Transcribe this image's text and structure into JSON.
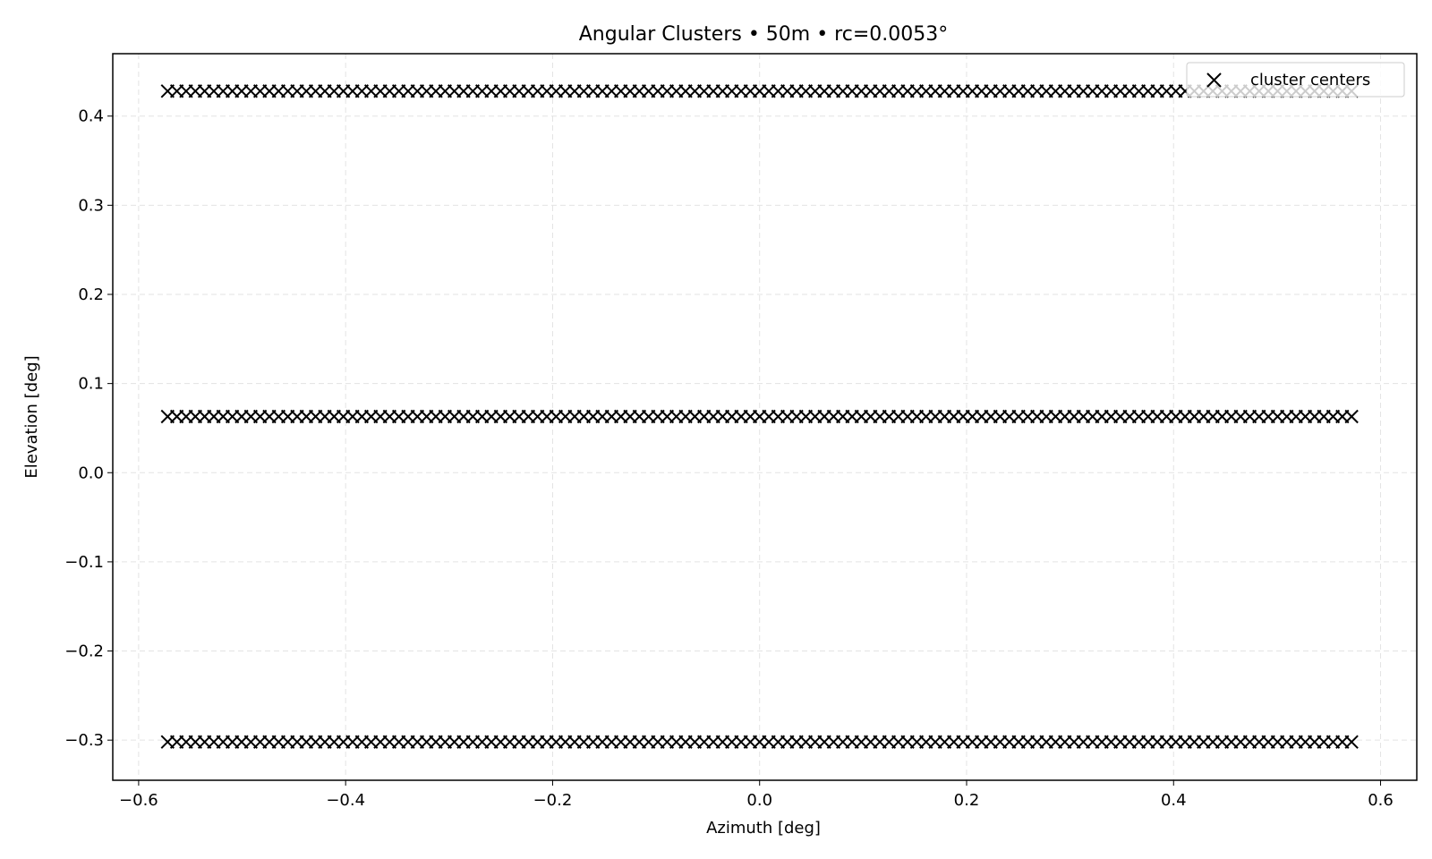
{
  "chart_data": {
    "type": "scatter",
    "title": "Angular Clusters • 50m • rc=0.0053°",
    "xlabel": "Azimuth [deg]",
    "ylabel": "Elevation [deg]",
    "xlim": [
      -0.625,
      0.635
    ],
    "ylim": [
      -0.345,
      0.47
    ],
    "xticks": [
      -0.6,
      -0.4,
      -0.2,
      0.0,
      0.2,
      0.4,
      0.6
    ],
    "xtick_labels": [
      "−0.6",
      "−0.4",
      "−0.2",
      "0.0",
      "0.2",
      "0.4",
      "0.6"
    ],
    "yticks": [
      -0.3,
      -0.2,
      -0.1,
      0.0,
      0.1,
      0.2,
      0.3,
      0.4
    ],
    "ytick_labels": [
      "−0.3",
      "−0.2",
      "−0.1",
      "0.0",
      "0.1",
      "0.2",
      "0.3",
      "0.4"
    ],
    "grid": true,
    "legend_position": "top-right",
    "series": [
      {
        "name": "cluster centers",
        "marker": "x",
        "color": "#000000",
        "rows": [
          {
            "y": 0.428,
            "x_start": -0.572,
            "x_end": 0.572,
            "count": 129
          },
          {
            "y": 0.063,
            "x_start": -0.572,
            "x_end": 0.572,
            "count": 129
          },
          {
            "y": -0.302,
            "x_start": -0.572,
            "x_end": 0.572,
            "count": 129
          }
        ]
      }
    ]
  }
}
